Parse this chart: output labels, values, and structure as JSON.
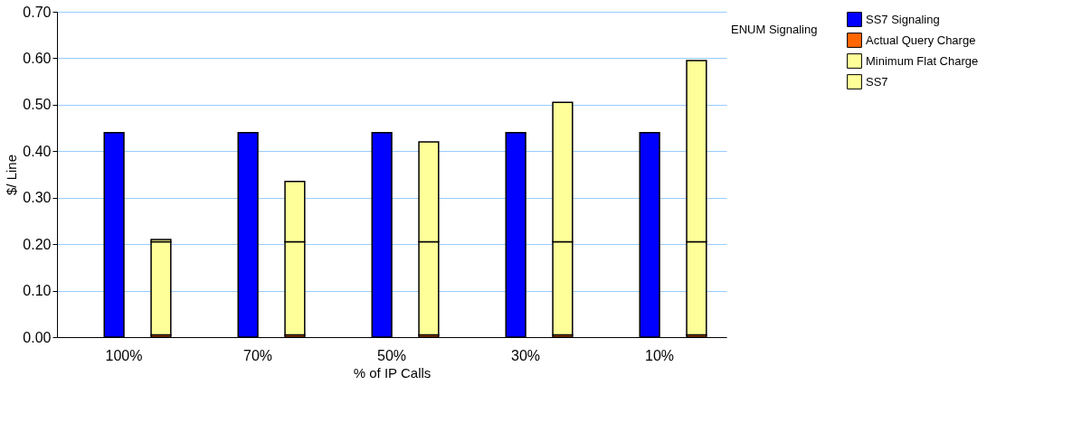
{
  "chart_data": {
    "type": "bar",
    "categories": [
      "100%",
      "70%",
      "50%",
      "30%",
      "10%"
    ],
    "xlabel": "% of IP Calls",
    "ylabel": "$/ Line",
    "ylim": [
      0,
      0.7
    ],
    "yticks": [
      {
        "value": 0,
        "label": "0.00"
      },
      {
        "value": 0.1,
        "label": "0.10"
      },
      {
        "value": 0.2,
        "label": "0.20"
      },
      {
        "value": 0.3,
        "label": "0.30"
      },
      {
        "value": 0.4,
        "label": "0.40"
      },
      {
        "value": 0.5,
        "label": "0.50"
      },
      {
        "value": 0.6,
        "label": "0.60"
      },
      {
        "value": 0.7,
        "label": "0.70"
      }
    ],
    "grid": "y",
    "legend": "right",
    "series": [
      {
        "name": "SS7 Signaling",
        "color": "#0000ff",
        "values": [
          0.44,
          0.44,
          0.44,
          0.44,
          0.44
        ]
      },
      {
        "name": "Actual Query Charge",
        "color": "#ff6600",
        "base": [
          0,
          0,
          0,
          0,
          0
        ],
        "values": [
          0.005,
          0.005,
          0.005,
          0.005,
          0.005
        ]
      },
      {
        "name": "Minimum Flat Charge",
        "color": "#ffff99",
        "base": [
          0.005,
          0.005,
          0.005,
          0.005,
          0.005
        ],
        "values": [
          0.2,
          0.2,
          0.2,
          0.2,
          0.2
        ]
      },
      {
        "name": "SS7",
        "color": "#ffff99",
        "base": [
          0.205,
          0.205,
          0.205,
          0.205,
          0.205
        ],
        "values": [
          0.005,
          0.13,
          0.215,
          0.3,
          0.39
        ]
      }
    ],
    "annotations": [
      "ENUM Signaling"
    ]
  }
}
